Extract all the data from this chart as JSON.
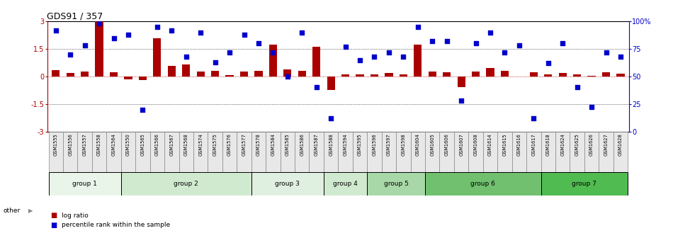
{
  "title": "GDS91 / 357",
  "samples": [
    "GSM1555",
    "GSM1556",
    "GSM1557",
    "GSM1558",
    "GSM1564",
    "GSM1550",
    "GSM1565",
    "GSM1566",
    "GSM1567",
    "GSM1568",
    "GSM1574",
    "GSM1575",
    "GSM1576",
    "GSM1577",
    "GSM1578",
    "GSM1584",
    "GSM1585",
    "GSM1586",
    "GSM1587",
    "GSM1588",
    "GSM1594",
    "GSM1595",
    "GSM1596",
    "GSM1597",
    "GSM1598",
    "GSM1604",
    "GSM1605",
    "GSM1606",
    "GSM1607",
    "GSM1608",
    "GSM1614",
    "GSM1615",
    "GSM1616",
    "GSM1617",
    "GSM1618",
    "GSM1624",
    "GSM1625",
    "GSM1626",
    "GSM1627",
    "GSM1628"
  ],
  "log_ratios": [
    0.35,
    0.18,
    0.25,
    3.0,
    0.22,
    -0.15,
    -0.18,
    2.1,
    0.58,
    0.65,
    0.28,
    0.32,
    0.08,
    0.25,
    0.3,
    1.72,
    0.38,
    0.32,
    1.6,
    -0.72,
    0.1,
    0.12,
    0.1,
    0.18,
    0.12,
    1.72,
    0.28,
    0.22,
    -0.58,
    0.28,
    0.45,
    0.32,
    -0.02,
    0.22,
    0.1,
    0.18,
    0.1,
    0.05,
    0.22,
    0.15
  ],
  "percentile_ranks": [
    92,
    70,
    78,
    98,
    85,
    88,
    20,
    95,
    92,
    68,
    90,
    63,
    72,
    88,
    80,
    72,
    50,
    90,
    40,
    12,
    77,
    65,
    68,
    72,
    68,
    95,
    82,
    82,
    28,
    80,
    90,
    72,
    78,
    12,
    62,
    80,
    40,
    22,
    72,
    68
  ],
  "groups": [
    {
      "name": "group 1",
      "start": 0,
      "end": 4,
      "color": "#e8f5e8"
    },
    {
      "name": "group 2",
      "start": 5,
      "end": 13,
      "color": "#d0ead0"
    },
    {
      "name": "group 3",
      "start": 14,
      "end": 18,
      "color": "#e0f0e0"
    },
    {
      "name": "group 4",
      "start": 19,
      "end": 21,
      "color": "#d0ead0"
    },
    {
      "name": "group 5",
      "start": 22,
      "end": 25,
      "color": "#a8d8a8"
    },
    {
      "name": "group 6",
      "start": 26,
      "end": 33,
      "color": "#70c070"
    },
    {
      "name": "group 7",
      "start": 34,
      "end": 39,
      "color": "#50bb50"
    }
  ],
  "bar_color": "#aa0000",
  "dot_color": "#0000cc",
  "ylim_left": [
    -3,
    3
  ],
  "ylim_right": [
    0,
    100
  ],
  "yticks_left": [
    -3,
    -1.5,
    0,
    1.5,
    3
  ],
  "yticks_right": [
    0,
    25,
    50,
    75,
    100
  ],
  "dotted_hlines": [
    -1.5,
    1.5
  ],
  "zero_line": 0,
  "legend_items": [
    "log ratio",
    "percentile rank within the sample"
  ],
  "legend_colors": [
    "#aa0000",
    "#0000cc"
  ],
  "other_label": "other",
  "bgcolor": "#ffffff"
}
